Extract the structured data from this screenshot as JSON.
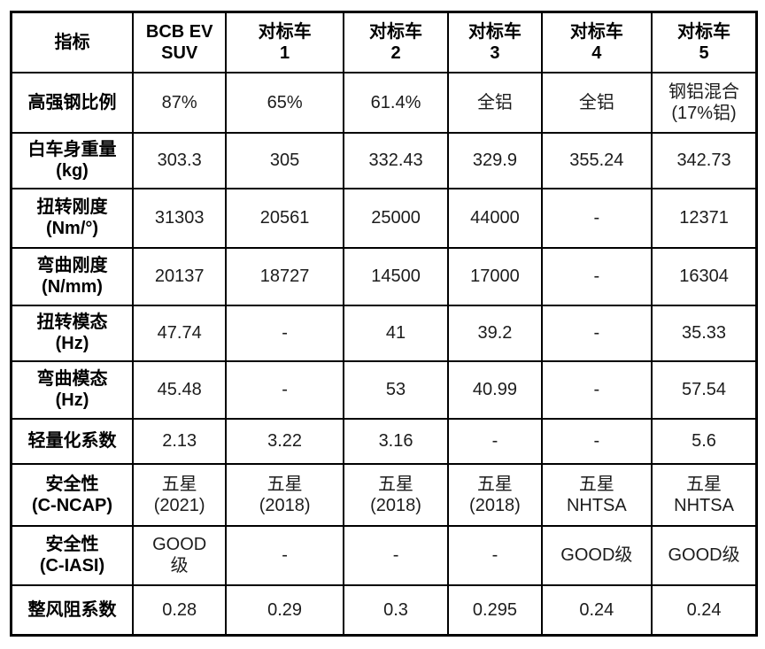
{
  "colors": {
    "highlight_red": "#ff2531",
    "text": "#1c1c1c",
    "border": "#000000",
    "muted_serif_text": "#3d3d3d",
    "background": "#ffffff"
  },
  "table": {
    "header": [
      "指标",
      "BCB EV\nSUV",
      "对标车\n1",
      "对标车\n2",
      "对标车\n3",
      "对标车\n4",
      "对标车\n5"
    ],
    "rows": [
      {
        "label": "高强钢比例",
        "values": [
          "87%",
          "65%",
          "61.4%",
          "全铝",
          "全铝",
          "钢铝混合\n(17%铝)"
        ]
      },
      {
        "label": "白车身重量\n(kg)",
        "values": [
          "303.3",
          "305",
          "332.43",
          "329.9",
          "355.24",
          "342.73"
        ]
      },
      {
        "label": "扭转刚度\n(Nm/°)",
        "values": [
          "31303",
          "20561",
          "25000",
          "44000",
          "-",
          "12371"
        ]
      },
      {
        "label": "弯曲刚度\n(N/mm)",
        "values": [
          "20137",
          "18727",
          "14500",
          "17000",
          "-",
          "16304"
        ]
      },
      {
        "label": "扭转模态\n(Hz)",
        "values": [
          "47.74",
          "-",
          "41",
          "39.2",
          "-",
          "35.33"
        ]
      },
      {
        "label": "弯曲模态\n(Hz)",
        "values": [
          "45.48",
          "-",
          "53",
          "40.99",
          "-",
          "57.54"
        ]
      },
      {
        "label": "轻量化系数",
        "values": [
          "2.13",
          "3.22",
          "3.16",
          "-",
          "-",
          "5.6"
        ]
      },
      {
        "label": "安全性\n(C-NCAP)",
        "values": [
          "五星\n(2021)",
          "五星\n(2018)",
          "五星\n(2018)",
          "五星\n(2018)",
          "五星\nNHTSA",
          "五星\nNHTSA"
        ]
      },
      {
        "label": "安全性\n(C-IASI)",
        "values": [
          "GOOD\n级",
          "-",
          "-",
          "-",
          "GOOD级",
          "GOOD级"
        ]
      },
      {
        "label": "整风阻系数",
        "values": [
          "0.28",
          "0.29",
          "0.3",
          "0.295",
          "0.24",
          "0.24"
        ]
      }
    ],
    "highlight_column": 0,
    "muted_cells": [
      {
        "row": 0,
        "col": 4
      }
    ]
  }
}
